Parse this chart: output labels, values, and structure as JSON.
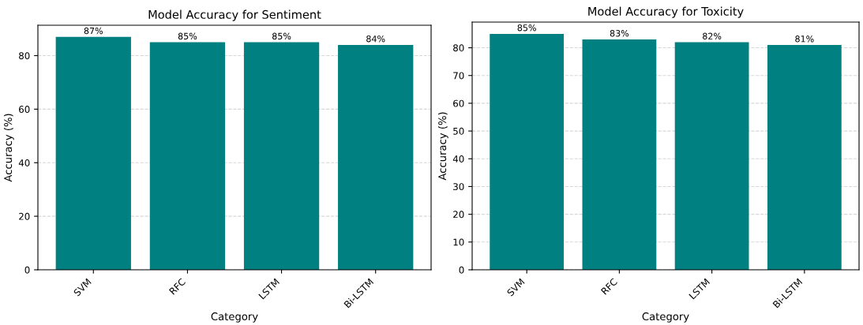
{
  "chart_data": [
    {
      "type": "bar",
      "title": "Model Accuracy for Sentiment",
      "xlabel": "Category",
      "ylabel": "Accuracy (%)",
      "categories": [
        "SVM",
        "RFC",
        "LSTM",
        "Bi-LSTM"
      ],
      "values": [
        87,
        85,
        85,
        84
      ],
      "color": "#008080",
      "value_labels": [
        "87%",
        "85%",
        "85%",
        "84%"
      ],
      "ylim": [
        0,
        91.35
      ],
      "yticks": [
        0,
        20,
        40,
        60,
        80
      ],
      "grid": "y"
    },
    {
      "type": "bar",
      "title": "Model Accuracy for Toxicity",
      "xlabel": "Category",
      "ylabel": "Accuracy (%)",
      "categories": [
        "SVM",
        "RFC",
        "LSTM",
        "Bi-LSTM"
      ],
      "values": [
        85,
        83,
        82,
        81
      ],
      "color": "#008080",
      "value_labels": [
        "85%",
        "83%",
        "82%",
        "81%"
      ],
      "ylim": [
        0,
        89.25
      ],
      "yticks": [
        0,
        10,
        20,
        30,
        40,
        50,
        60,
        70,
        80
      ],
      "grid": "y"
    }
  ]
}
